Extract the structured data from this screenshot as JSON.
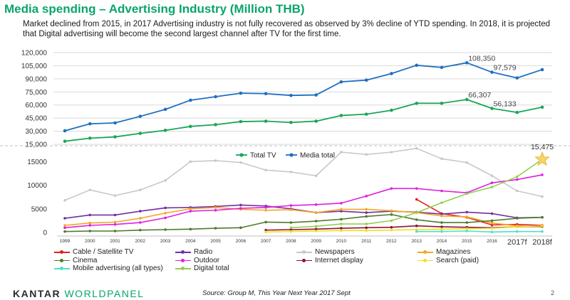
{
  "title": "Media spending – Advertising Industry (Million THB)",
  "subtitle": "Market declined from 2015, in 2017 Advertising industry is not fully recovered as observed by 3% decline of YTD spending. In 2018, it is projected that Digital advertising will become the second largest channel after TV for the first time.",
  "footer": {
    "logo_part1": "KANTAR",
    "logo_part2": "WORLDPANEL",
    "source": "Source: Group M, This Year Next Year 2017 Sept",
    "page": "2"
  },
  "chart_data": [
    {
      "type": "line",
      "title": "",
      "x": [
        "1999",
        "2000",
        "2001",
        "2002",
        "2003",
        "2004",
        "2005",
        "2006",
        "2007",
        "2008",
        "2009",
        "2010",
        "2011",
        "2012",
        "2013",
        "2014",
        "2015",
        "2016",
        "2017f",
        "2018f"
      ],
      "yticks": [
        "120,000",
        "105,000",
        "90,000",
        "75,000",
        "60,000",
        "45,000",
        "30,000",
        "15,000"
      ],
      "ylim": [
        15000,
        120000
      ],
      "legend_position": "bottom-center",
      "series": [
        {
          "name": "Total TV",
          "color": "#1aa657",
          "values": [
            18500,
            22000,
            23500,
            27500,
            31000,
            35500,
            37500,
            41000,
            41500,
            40000,
            41500,
            48000,
            49500,
            54000,
            62000,
            62000,
            66307,
            56133,
            51500,
            57500
          ]
        },
        {
          "name": "Media total",
          "color": "#1f6fc1",
          "values": [
            30500,
            38500,
            39500,
            47000,
            55000,
            65500,
            69500,
            73500,
            73000,
            71000,
            71500,
            86500,
            88500,
            96000,
            105500,
            103000,
            108350,
            97579,
            91000,
            100500
          ]
        }
      ],
      "annotations": [
        {
          "series": "Media total",
          "x": "2015",
          "text": "108,350"
        },
        {
          "series": "Media total",
          "x": "2016",
          "text": "97,579"
        },
        {
          "series": "Total TV",
          "x": "2015",
          "text": "66,307"
        },
        {
          "series": "Total TV",
          "x": "2016",
          "text": "56,133"
        }
      ]
    },
    {
      "type": "line",
      "title": "",
      "x": [
        "1999",
        "2000",
        "2001",
        "2002",
        "2003",
        "2004",
        "2005",
        "2006",
        "2007",
        "2008",
        "2009",
        "2010",
        "2011",
        "2012",
        "2013",
        "2014",
        "2015",
        "2016",
        "2017f",
        "2018f"
      ],
      "yticks": [
        "15000",
        "10000",
        "5000",
        "0"
      ],
      "ylim": [
        0,
        17000
      ],
      "legend_position": "bottom",
      "series": [
        {
          "name": "Cable / Satellite TV",
          "color": "#e02020",
          "values": [
            null,
            null,
            null,
            null,
            null,
            null,
            null,
            null,
            null,
            null,
            null,
            null,
            null,
            null,
            7000,
            4000,
            3200,
            1600,
            1700,
            1500
          ]
        },
        {
          "name": "Radio",
          "color": "#7030a0",
          "values": [
            3000,
            3700,
            3700,
            4500,
            5200,
            5300,
            5500,
            5800,
            5600,
            5000,
            4200,
            4500,
            4200,
            4500,
            4300,
            3900,
            4300,
            4000,
            3100,
            3200
          ]
        },
        {
          "name": "Newspapers",
          "color": "#c8c8c8",
          "values": [
            6800,
            9000,
            7800,
            9000,
            11000,
            15000,
            15200,
            14800,
            13200,
            12800,
            12000,
            17000,
            16500,
            17000,
            17800,
            15600,
            14800,
            12000,
            8800,
            7600
          ]
        },
        {
          "name": "Magazines",
          "color": "#f5a623",
          "values": [
            1500,
            2000,
            2200,
            3000,
            4100,
            5000,
            5300,
            4900,
            4700,
            4800,
            4200,
            4900,
            4900,
            4600,
            4200,
            3500,
            3300,
            2000,
            1400,
            1200
          ]
        },
        {
          "name": "Cinema",
          "color": "#4e7a2c",
          "values": [
            200,
            300,
            300,
            500,
            600,
            700,
            900,
            1000,
            2200,
            2100,
            2400,
            2800,
            3400,
            3800,
            2700,
            2100,
            2100,
            2500,
            3000,
            3200
          ]
        },
        {
          "name": "Outdoor",
          "color": "#e020e0",
          "values": [
            1000,
            1500,
            1700,
            2100,
            3100,
            4500,
            4700,
            5100,
            5300,
            5700,
            5900,
            6200,
            7700,
            9300,
            9300,
            8800,
            8400,
            10500,
            11200,
            12200
          ]
        },
        {
          "name": "Internet display",
          "color": "#8a1535",
          "values": [
            null,
            null,
            null,
            null,
            null,
            null,
            null,
            null,
            500,
            600,
            700,
            900,
            1000,
            1100,
            1400,
            1200,
            1100,
            1000,
            1200,
            1300
          ]
        },
        {
          "name": "Search (paid)",
          "color": "#f0e020",
          "values": [
            null,
            null,
            null,
            null,
            null,
            null,
            null,
            null,
            100,
            200,
            300,
            400,
            400,
            500,
            600,
            700,
            800,
            900,
            1200,
            1400
          ]
        },
        {
          "name": "Mobile advertising (all types)",
          "color": "#4de0c8",
          "values": [
            null,
            null,
            null,
            null,
            null,
            null,
            null,
            null,
            null,
            null,
            null,
            null,
            null,
            null,
            200,
            200,
            300,
            100,
            200,
            200
          ]
        },
        {
          "name": "Digital total",
          "color": "#92d050",
          "values": [
            null,
            null,
            null,
            null,
            null,
            null,
            null,
            null,
            null,
            1000,
            1300,
            1800,
            1800,
            2500,
            4200,
            6300,
            8200,
            9600,
            11800,
            15475
          ]
        }
      ],
      "annotations": [
        {
          "series": "Digital total",
          "x": "2018f",
          "text": "15,475"
        }
      ]
    }
  ]
}
